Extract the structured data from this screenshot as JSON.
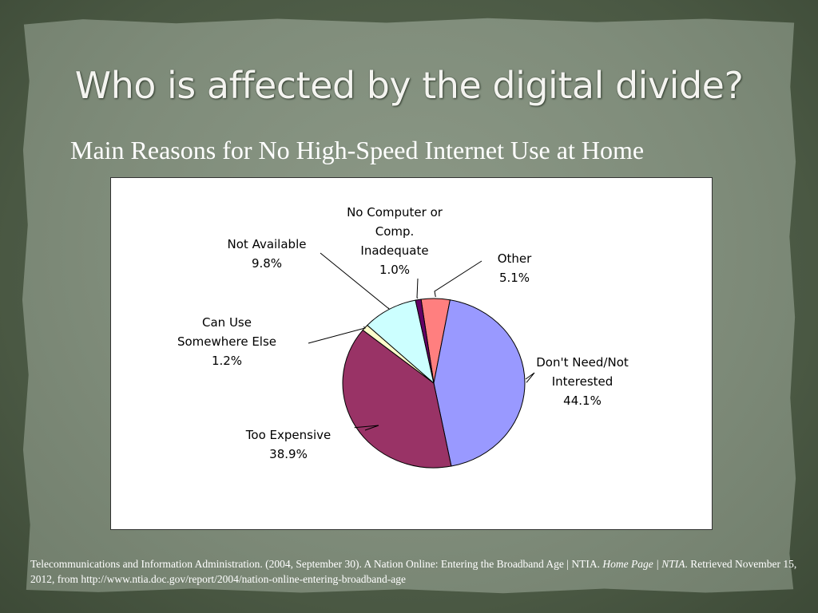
{
  "slide": {
    "title": "Who is affected by the digital divide?",
    "subtitle": "Main Reasons for No High-Speed Internet Use at Home"
  },
  "citation": {
    "part1": "Telecommunications and Information Administration. (2004, September 30). A Nation Online: Entering the Broadband Age | NTIA.",
    "italic": "Home Page | NTIA",
    "part2": ". Retrieved November 15, 2012, from http://www.ntia.doc.gov/report/2004/nation-online-entering-broadband-age"
  },
  "chart_data": {
    "type": "pie",
    "title": "",
    "start_category": "Other",
    "direction": "clockwise",
    "slices": [
      {
        "label_lines": [
          "Other",
          "5.1%"
        ],
        "category": "Other",
        "value": 5.1,
        "color": "#ff7f7f"
      },
      {
        "label_lines": [
          "Don't Need/Not",
          "Interested",
          "44.1%"
        ],
        "category": "Don't Need/Not Interested",
        "value": 44.1,
        "color": "#9999ff"
      },
      {
        "label_lines": [
          "Too Expensive",
          "38.9%"
        ],
        "category": "Too Expensive",
        "value": 38.9,
        "color": "#993366"
      },
      {
        "label_lines": [
          "Can Use",
          "Somewhere Else",
          "1.2%"
        ],
        "category": "Can Use Somewhere Else",
        "value": 1.2,
        "color": "#ffffcc"
      },
      {
        "label_lines": [
          "Not Available",
          "9.8%"
        ],
        "category": "Not Available",
        "value": 9.8,
        "color": "#ccffff"
      },
      {
        "label_lines": [
          "No Computer or",
          "Comp.",
          "Inadequate",
          "1.0%"
        ],
        "category": "No Computer or Comp. Inadequate",
        "value": 1.0,
        "color": "#660066"
      }
    ]
  }
}
